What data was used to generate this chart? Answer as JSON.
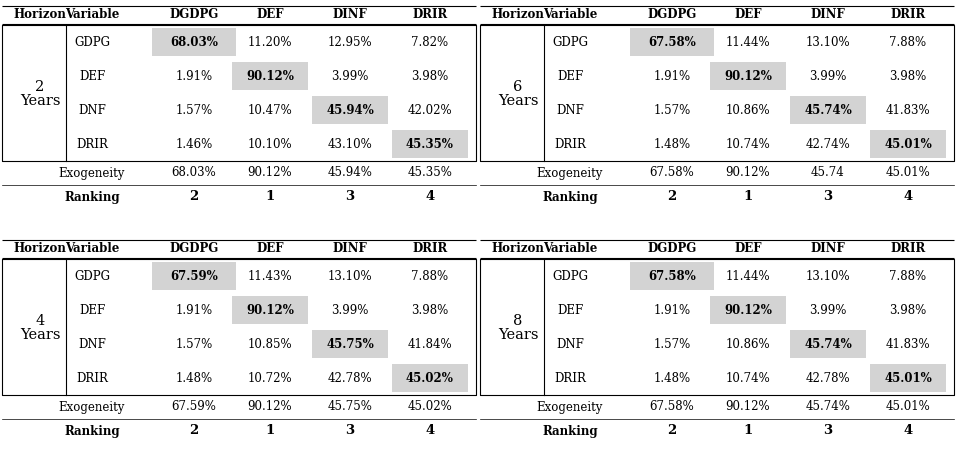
{
  "panels": [
    {
      "horizon_label": "2",
      "rows": [
        {
          "var": "GDPG",
          "vals": [
            "68.03%",
            "11.20%",
            "12.95%",
            "7.82%"
          ],
          "highlight": 0
        },
        {
          "var": "DEF",
          "vals": [
            "1.91%",
            "90.12%",
            "3.99%",
            "3.98%"
          ],
          "highlight": 1
        },
        {
          "var": "DNF",
          "vals": [
            "1.57%",
            "10.47%",
            "45.94%",
            "42.02%"
          ],
          "highlight": 2
        },
        {
          "var": "DRIR",
          "vals": [
            "1.46%",
            "10.10%",
            "43.10%",
            "45.35%"
          ],
          "highlight": 3
        }
      ],
      "exogeneity": [
        "68.03%",
        "90.12%",
        "45.94%",
        "45.35%"
      ],
      "ranking": [
        "2",
        "1",
        "3",
        "4"
      ]
    },
    {
      "horizon_label": "6",
      "rows": [
        {
          "var": "GDPG",
          "vals": [
            "67.58%",
            "11.44%",
            "13.10%",
            "7.88%"
          ],
          "highlight": 0
        },
        {
          "var": "DEF",
          "vals": [
            "1.91%",
            "90.12%",
            "3.99%",
            "3.98%"
          ],
          "highlight": 1
        },
        {
          "var": "DNF",
          "vals": [
            "1.57%",
            "10.86%",
            "45.74%",
            "41.83%"
          ],
          "highlight": 2
        },
        {
          "var": "DRIR",
          "vals": [
            "1.48%",
            "10.74%",
            "42.74%",
            "45.01%"
          ],
          "highlight": 3
        }
      ],
      "exogeneity": [
        "67.58%",
        "90.12%",
        "45.74",
        "45.01%"
      ],
      "ranking": [
        "2",
        "1",
        "3",
        "4"
      ]
    },
    {
      "horizon_label": "4",
      "rows": [
        {
          "var": "GDPG",
          "vals": [
            "67.59%",
            "11.43%",
            "13.10%",
            "7.88%"
          ],
          "highlight": 0
        },
        {
          "var": "DEF",
          "vals": [
            "1.91%",
            "90.12%",
            "3.99%",
            "3.98%"
          ],
          "highlight": 1
        },
        {
          "var": "DNF",
          "vals": [
            "1.57%",
            "10.85%",
            "45.75%",
            "41.84%"
          ],
          "highlight": 2
        },
        {
          "var": "DRIR",
          "vals": [
            "1.48%",
            "10.72%",
            "42.78%",
            "45.02%"
          ],
          "highlight": 3
        }
      ],
      "exogeneity": [
        "67.59%",
        "90.12%",
        "45.75%",
        "45.02%"
      ],
      "ranking": [
        "2",
        "1",
        "3",
        "4"
      ]
    },
    {
      "horizon_label": "8",
      "rows": [
        {
          "var": "GDPG",
          "vals": [
            "67.58%",
            "11.44%",
            "13.10%",
            "7.88%"
          ],
          "highlight": 0
        },
        {
          "var": "DEF",
          "vals": [
            "1.91%",
            "90.12%",
            "3.99%",
            "3.98%"
          ],
          "highlight": 1
        },
        {
          "var": "DNF",
          "vals": [
            "1.57%",
            "10.86%",
            "45.74%",
            "41.83%"
          ],
          "highlight": 2
        },
        {
          "var": "DRIR",
          "vals": [
            "1.48%",
            "10.74%",
            "42.78%",
            "45.01%"
          ],
          "highlight": 3
        }
      ],
      "exogeneity": [
        "67.58%",
        "90.12%",
        "45.74%",
        "45.01%"
      ],
      "ranking": [
        "2",
        "1",
        "3",
        "4"
      ]
    }
  ],
  "col_headers": [
    "Horizon",
    "Variable",
    "DGDPG",
    "DEF",
    "DINF",
    "DRIR"
  ],
  "highlight_color": "#d3d3d3",
  "bg_color": "#ffffff",
  "fontsize": 8.5,
  "header_fontsize": 8.5
}
